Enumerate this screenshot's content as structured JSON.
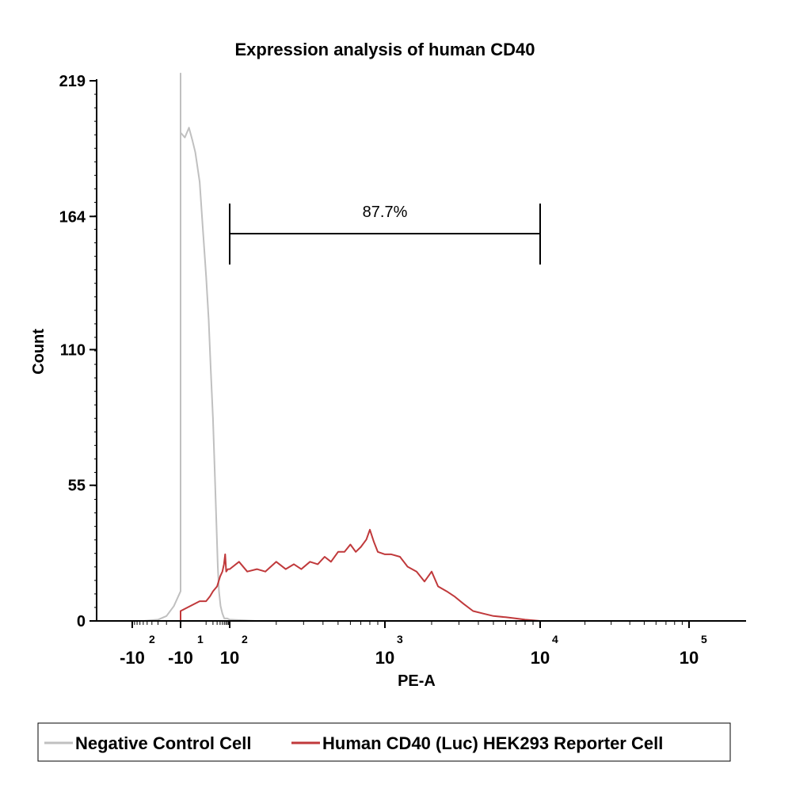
{
  "chart_data": {
    "type": "area",
    "title": "Expression analysis of human CD40",
    "xlabel": "PE-A",
    "ylabel": "Count",
    "x_scale": "biexponential",
    "y_range": [
      0,
      219
    ],
    "y_ticks": [
      0,
      55,
      110,
      164,
      219
    ],
    "x_ticks": [
      {
        "value": -100,
        "base": "-10",
        "exp": "2"
      },
      {
        "value": -10,
        "base": "-10",
        "exp": "1"
      },
      {
        "value": 100,
        "base": "10",
        "exp": "2"
      },
      {
        "value": 1000,
        "base": "10",
        "exp": "3"
      },
      {
        "value": 10000,
        "base": "10",
        "exp": "4"
      },
      {
        "value": 100000,
        "base": "10",
        "exp": "5"
      }
    ],
    "gate": {
      "label": "87.7%",
      "x_start": 100,
      "x_end": 10000
    },
    "legend_position": "bottom",
    "series": [
      {
        "name": "Negative Control Cell",
        "color": "#c0c0c0",
        "points": [
          [
            -120,
            0
          ],
          [
            -60,
            0
          ],
          [
            -30,
            0.5
          ],
          [
            -20,
            2
          ],
          [
            -14,
            6
          ],
          [
            -10,
            12
          ],
          [
            -7,
            40
          ],
          [
            -5,
            90
          ],
          [
            -3.5,
            160
          ],
          [
            -2.5,
            200
          ],
          [
            -2,
            222
          ],
          [
            -1.2,
            212
          ],
          [
            -0.5,
            198
          ],
          [
            0.5,
            196
          ],
          [
            1.2,
            200
          ],
          [
            2,
            195
          ],
          [
            3,
            190
          ],
          [
            5,
            178
          ],
          [
            7,
            160
          ],
          [
            10,
            140
          ],
          [
            13,
            122
          ],
          [
            16,
            102
          ],
          [
            20,
            82
          ],
          [
            24,
            60
          ],
          [
            28,
            40
          ],
          [
            32,
            22
          ],
          [
            36,
            12
          ],
          [
            42,
            6
          ],
          [
            50,
            3
          ],
          [
            60,
            1
          ],
          [
            80,
            1
          ],
          [
            100,
            0.5
          ],
          [
            150,
            0
          ],
          [
            200,
            0
          ]
        ]
      },
      {
        "name": "Human CD40 (Luc) HEK293 Reporter Cell",
        "color": "#c0393b",
        "points": [
          [
            -10,
            0
          ],
          [
            -5,
            1
          ],
          [
            0,
            4
          ],
          [
            5,
            8
          ],
          [
            10,
            8
          ],
          [
            15,
            10
          ],
          [
            20,
            12
          ],
          [
            30,
            14
          ],
          [
            40,
            18
          ],
          [
            50,
            20
          ],
          [
            58,
            23
          ],
          [
            65,
            27
          ],
          [
            72,
            20
          ],
          [
            85,
            21
          ],
          [
            100,
            21
          ],
          [
            115,
            24
          ],
          [
            130,
            20
          ],
          [
            150,
            21
          ],
          [
            170,
            20
          ],
          [
            200,
            24
          ],
          [
            230,
            21
          ],
          [
            260,
            23
          ],
          [
            290,
            21
          ],
          [
            330,
            24
          ],
          [
            370,
            23
          ],
          [
            410,
            26
          ],
          [
            450,
            24
          ],
          [
            500,
            28
          ],
          [
            550,
            28
          ],
          [
            600,
            31
          ],
          [
            650,
            28
          ],
          [
            700,
            30
          ],
          [
            760,
            33
          ],
          [
            800,
            37
          ],
          [
            850,
            32
          ],
          [
            900,
            28
          ],
          [
            1000,
            27
          ],
          [
            1100,
            27
          ],
          [
            1250,
            26
          ],
          [
            1400,
            22
          ],
          [
            1600,
            20
          ],
          [
            1800,
            16
          ],
          [
            2000,
            20
          ],
          [
            2200,
            14
          ],
          [
            2500,
            12
          ],
          [
            2800,
            10
          ],
          [
            3200,
            7
          ],
          [
            3700,
            4
          ],
          [
            4300,
            3
          ],
          [
            5000,
            2
          ],
          [
            6000,
            1.5
          ],
          [
            7000,
            1
          ],
          [
            8000,
            0.5
          ],
          [
            10000,
            0
          ],
          [
            12000,
            0
          ]
        ]
      }
    ]
  }
}
